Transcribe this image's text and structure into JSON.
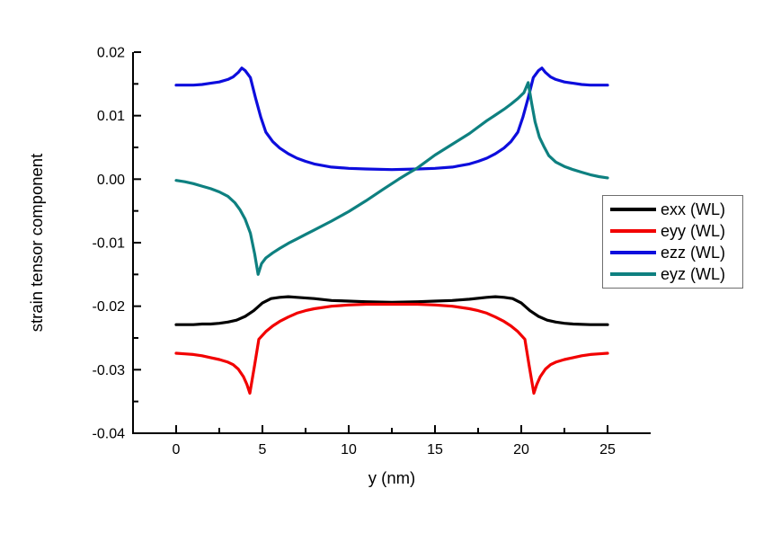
{
  "figure": {
    "background": "#ffffff",
    "axis_color": "#000000"
  },
  "chart_data": {
    "type": "line",
    "title": "",
    "xlabel": "y (nm)",
    "ylabel": "strain tensor component",
    "xlim": [
      -2.5,
      27.5
    ],
    "ylim": [
      -0.04,
      0.02
    ],
    "grid": false,
    "legend_position": "middle-right",
    "x_ticks": {
      "major": [
        {
          "value": 0,
          "label": "0"
        },
        {
          "value": 5,
          "label": "5"
        },
        {
          "value": 10,
          "label": "10"
        },
        {
          "value": 15,
          "label": "15"
        },
        {
          "value": 20,
          "label": "20"
        },
        {
          "value": 25,
          "label": "25"
        }
      ],
      "minor": [
        2.5,
        7.5,
        12.5,
        17.5,
        22.5
      ]
    },
    "y_ticks": {
      "major": [
        {
          "value": 0.02,
          "label": "0.02"
        },
        {
          "value": 0.01,
          "label": "0.01"
        },
        {
          "value": 0.0,
          "label": "0.00"
        },
        {
          "value": -0.01,
          "label": "-0.01"
        },
        {
          "value": -0.02,
          "label": "-0.02"
        },
        {
          "value": -0.03,
          "label": "-0.03"
        },
        {
          "value": -0.04,
          "label": "-0.04"
        }
      ],
      "minor": [
        0.015,
        0.005,
        -0.005,
        -0.015,
        -0.025,
        -0.035
      ]
    },
    "series": [
      {
        "name": "exx (WL)",
        "color": "#000000",
        "x": [
          0,
          0.5,
          1,
          1.5,
          2,
          2.5,
          3,
          3.5,
          4,
          4.5,
          5,
          5.5,
          6,
          6.5,
          7,
          8,
          9,
          10,
          11,
          12.5,
          14,
          15,
          16,
          17,
          18,
          18.5,
          19,
          19.5,
          20,
          20.5,
          21,
          21.5,
          22,
          22.5,
          23,
          24,
          25
        ],
        "y": [
          -0.0229,
          -0.0229,
          -0.0229,
          -0.0228,
          -0.0228,
          -0.0227,
          -0.0225,
          -0.0222,
          -0.0216,
          -0.0207,
          -0.0195,
          -0.0188,
          -0.0186,
          -0.0185,
          -0.0186,
          -0.0188,
          -0.0191,
          -0.0192,
          -0.0193,
          -0.0194,
          -0.0193,
          -0.0192,
          -0.0191,
          -0.0189,
          -0.0186,
          -0.0185,
          -0.0186,
          -0.0188,
          -0.0195,
          -0.0207,
          -0.0216,
          -0.0222,
          -0.0225,
          -0.0227,
          -0.0228,
          -0.0229,
          -0.0229
        ]
      },
      {
        "name": "eyy (WL)",
        "color": "#f20000",
        "x": [
          0,
          0.5,
          1,
          1.5,
          2,
          2.5,
          3,
          3.3,
          3.6,
          3.9,
          4.1,
          4.27,
          4.55,
          4.79,
          5.2,
          5.6,
          6,
          6.5,
          7,
          7.5,
          8,
          9,
          10,
          11,
          12.5,
          14,
          15,
          16,
          17,
          17.5,
          18,
          18.5,
          19,
          19.4,
          19.8,
          20.21,
          20.45,
          20.73,
          20.9,
          21.1,
          21.4,
          21.7,
          22,
          22.5,
          23,
          23.5,
          24,
          24.5,
          25
        ],
        "y": [
          -0.0274,
          -0.0275,
          -0.0276,
          -0.0278,
          -0.0281,
          -0.0284,
          -0.0288,
          -0.0292,
          -0.0299,
          -0.0311,
          -0.0323,
          -0.0337,
          -0.0292,
          -0.0252,
          -0.024,
          -0.0231,
          -0.0224,
          -0.0217,
          -0.0211,
          -0.0207,
          -0.0204,
          -0.02,
          -0.0198,
          -0.0197,
          -0.0197,
          -0.0197,
          -0.0198,
          -0.02,
          -0.0204,
          -0.0207,
          -0.0211,
          -0.0217,
          -0.0224,
          -0.0231,
          -0.024,
          -0.0252,
          -0.0292,
          -0.0337,
          -0.0323,
          -0.0311,
          -0.0299,
          -0.0292,
          -0.0288,
          -0.0284,
          -0.0281,
          -0.0278,
          -0.0276,
          -0.0275,
          -0.0274
        ]
      },
      {
        "name": "ezz (WL)",
        "color": "#0d0ddd",
        "x": [
          0,
          0.5,
          1,
          1.5,
          2,
          2.5,
          3,
          3.3,
          3.6,
          3.8,
          4,
          4.3,
          4.6,
          4.9,
          5.2,
          5.6,
          6,
          6.5,
          7,
          7.5,
          8,
          9,
          10,
          11,
          12.5,
          14,
          15,
          16,
          17,
          17.5,
          18,
          18.5,
          19,
          19.4,
          19.8,
          20.1,
          20.4,
          20.7,
          21,
          21.2,
          21.4,
          21.7,
          22,
          22.5,
          23,
          23.5,
          24,
          24.5,
          25
        ],
        "y": [
          0.0148,
          0.0148,
          0.0148,
          0.0149,
          0.0151,
          0.0153,
          0.0157,
          0.0161,
          0.0168,
          0.0175,
          0.0171,
          0.016,
          0.0128,
          0.0098,
          0.0074,
          0.0059,
          0.0049,
          0.004,
          0.0033,
          0.0028,
          0.0024,
          0.0019,
          0.0017,
          0.0016,
          0.0015,
          0.0016,
          0.0017,
          0.0019,
          0.0024,
          0.0028,
          0.0033,
          0.004,
          0.0049,
          0.0059,
          0.0074,
          0.0098,
          0.0128,
          0.016,
          0.0171,
          0.0175,
          0.0168,
          0.0161,
          0.0157,
          0.0153,
          0.0151,
          0.0149,
          0.0148,
          0.0148,
          0.0148
        ]
      },
      {
        "name": "eyz (WL)",
        "color": "#0e8080",
        "x": [
          0,
          0.5,
          1,
          1.5,
          2,
          2.5,
          3,
          3.4,
          3.7,
          4,
          4.3,
          4.55,
          4.75,
          4.95,
          5.2,
          5.6,
          6,
          6.5,
          7,
          7.5,
          8,
          9,
          10,
          11,
          12,
          12.9,
          13.5,
          14,
          15,
          16,
          17,
          17.5,
          18,
          18.5,
          19,
          19.4,
          19.8,
          20.15,
          20.4,
          20.6,
          20.8,
          21.05,
          21.3,
          21.6,
          22,
          22.5,
          23,
          23.5,
          24,
          24.5,
          25
        ],
        "y": [
          -0.0002,
          -0.0004,
          -0.0007,
          -0.0011,
          -0.0015,
          -0.002,
          -0.0027,
          -0.0037,
          -0.0048,
          -0.0063,
          -0.0085,
          -0.0118,
          -0.015,
          -0.0133,
          -0.0124,
          -0.0116,
          -0.0109,
          -0.0101,
          -0.0094,
          -0.0087,
          -0.008,
          -0.0066,
          -0.0051,
          -0.0034,
          -0.0016,
          0.0,
          0.001,
          0.0018,
          0.0038,
          0.0055,
          0.0072,
          0.0082,
          0.0092,
          0.0101,
          0.011,
          0.0118,
          0.0127,
          0.0136,
          0.0152,
          0.012,
          0.009,
          0.0066,
          0.0052,
          0.0037,
          0.0027,
          0.002,
          0.0015,
          0.0011,
          0.0007,
          0.0004,
          0.0002
        ]
      }
    ]
  }
}
